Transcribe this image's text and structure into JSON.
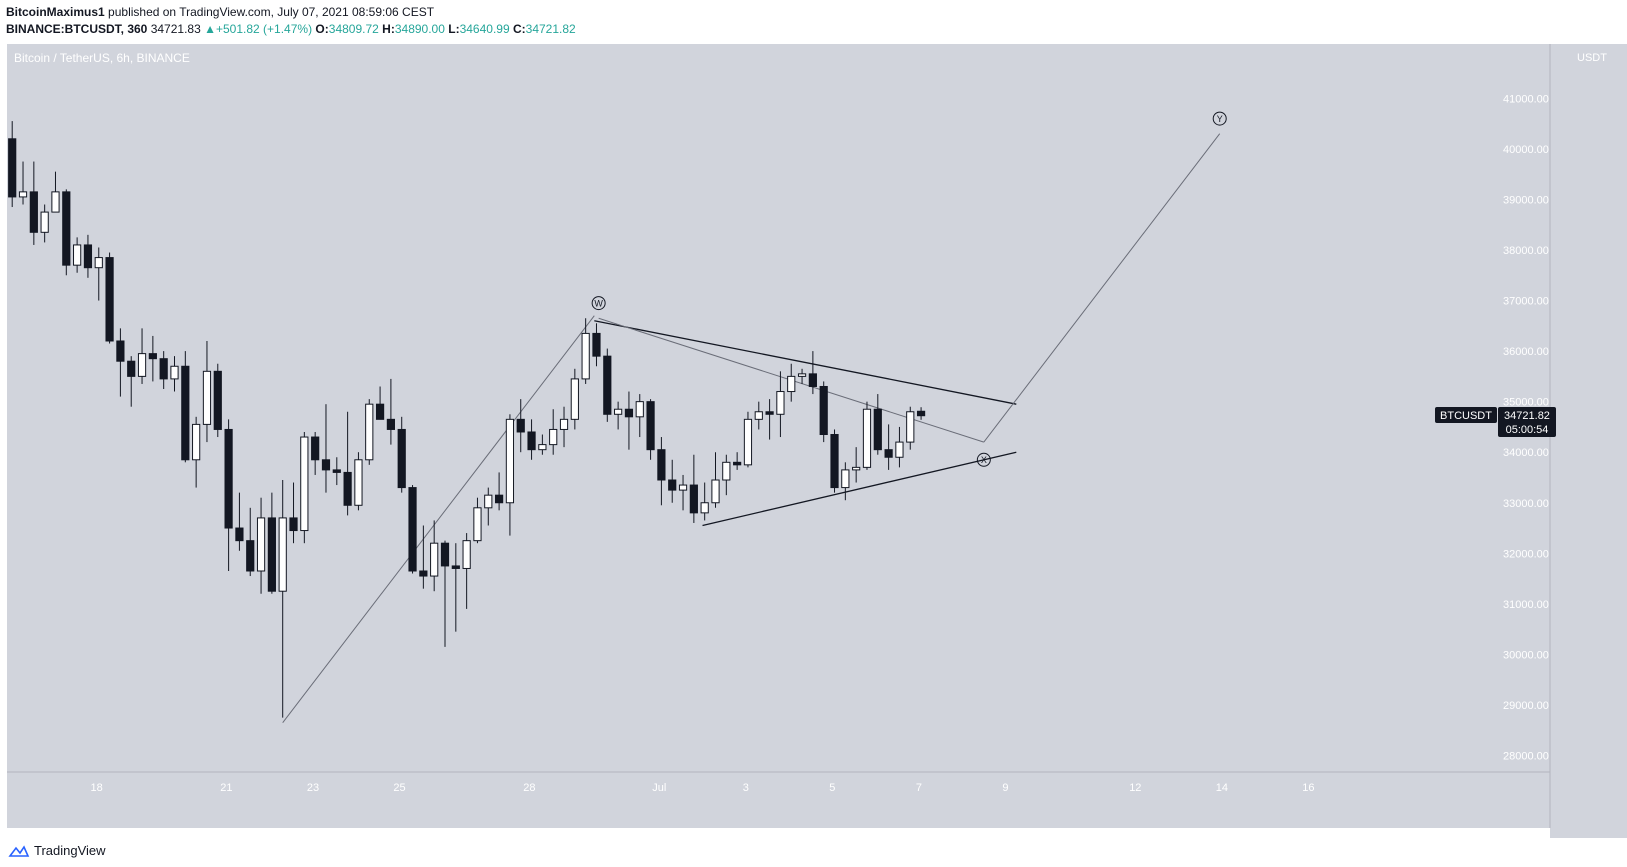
{
  "header": {
    "publisher": "BitcoinMaximus1",
    "published_text": "published on TradingView.com, July 07, 2021 08:59:06 CEST",
    "symbol": "BINANCE:BTCUSDT, 360",
    "last": "34721.83",
    "change": "+501.82 (+1.47%)",
    "o_label": "O:",
    "o_value": "34809.72",
    "h_label": "H:",
    "h_value": "34890.00",
    "l_label": "L:",
    "l_value": "34640.99",
    "c_label": "C:",
    "c_value": "34721.82"
  },
  "legend": "Bitcoin / TetherUS, 6h, BINANCE",
  "price_axis_unit": "USDT",
  "price_badge": {
    "symbol": "BTCUSDT",
    "price": "34721.82",
    "countdown": "05:00:54"
  },
  "waves": [
    "W",
    "X",
    "Y"
  ],
  "footer": {
    "brand": "TradingView"
  },
  "colors": {
    "plot_bg": "#d1d4dc",
    "bull": "#ffffff",
    "bear": "#131722",
    "line": "#131722",
    "badge": "#131722"
  },
  "chart_data": {
    "type": "candlestick",
    "title": "Bitcoin / TetherUS, 6h, BINANCE",
    "ylim": [
      27600,
      42000
    ],
    "y_ticks": [
      28000,
      29000,
      30000,
      31000,
      32000,
      33000,
      34000,
      35000,
      36000,
      37000,
      38000,
      39000,
      40000,
      41000
    ],
    "x_ticks": [
      {
        "label": "18",
        "i": 7.8
      },
      {
        "label": "21",
        "i": 19.8
      },
      {
        "label": "23",
        "i": 27.8
      },
      {
        "label": "25",
        "i": 35.8
      },
      {
        "label": "28",
        "i": 47.8
      },
      {
        "label": "Jul",
        "i": 59.8
      },
      {
        "label": "3",
        "i": 67.8
      },
      {
        "label": "5",
        "i": 75.8
      },
      {
        "label": "7",
        "i": 83.8
      },
      {
        "label": "9",
        "i": 91.8
      },
      {
        "label": "12",
        "i": 103.8
      },
      {
        "label": "14",
        "i": 111.8
      },
      {
        "label": "16",
        "i": 119.8
      }
    ],
    "candles": [
      {
        "o": 40200,
        "h": 40550,
        "l": 38850,
        "c": 39050
      },
      {
        "o": 39050,
        "h": 39750,
        "l": 38900,
        "c": 39150
      },
      {
        "o": 39150,
        "h": 39750,
        "l": 38100,
        "c": 38350
      },
      {
        "o": 38350,
        "h": 38900,
        "l": 38150,
        "c": 38750
      },
      {
        "o": 38750,
        "h": 39550,
        "l": 38750,
        "c": 39150
      },
      {
        "o": 39150,
        "h": 39200,
        "l": 37500,
        "c": 37700
      },
      {
        "o": 37700,
        "h": 38250,
        "l": 37550,
        "c": 38100
      },
      {
        "o": 38100,
        "h": 38300,
        "l": 37450,
        "c": 37650
      },
      {
        "o": 37650,
        "h": 38050,
        "l": 37000,
        "c": 37850
      },
      {
        "o": 37850,
        "h": 37950,
        "l": 36150,
        "c": 36200
      },
      {
        "o": 36200,
        "h": 36450,
        "l": 35100,
        "c": 35800
      },
      {
        "o": 35800,
        "h": 35900,
        "l": 34900,
        "c": 35500
      },
      {
        "o": 35500,
        "h": 36450,
        "l": 35350,
        "c": 35950
      },
      {
        "o": 35950,
        "h": 36300,
        "l": 35400,
        "c": 35850
      },
      {
        "o": 35850,
        "h": 36000,
        "l": 35250,
        "c": 35450
      },
      {
        "o": 35450,
        "h": 35900,
        "l": 35200,
        "c": 35700
      },
      {
        "o": 35700,
        "h": 36000,
        "l": 33800,
        "c": 33850
      },
      {
        "o": 33850,
        "h": 34700,
        "l": 33300,
        "c": 34550
      },
      {
        "o": 34550,
        "h": 36200,
        "l": 34200,
        "c": 35600
      },
      {
        "o": 35600,
        "h": 35750,
        "l": 34300,
        "c": 34450
      },
      {
        "o": 34450,
        "h": 34650,
        "l": 31650,
        "c": 32500
      },
      {
        "o": 32500,
        "h": 33200,
        "l": 32050,
        "c": 32250
      },
      {
        "o": 32250,
        "h": 32900,
        "l": 31550,
        "c": 31650
      },
      {
        "o": 31650,
        "h": 33100,
        "l": 31200,
        "c": 32700
      },
      {
        "o": 32700,
        "h": 33200,
        "l": 31200,
        "c": 31250
      },
      {
        "o": 31250,
        "h": 33450,
        "l": 28750,
        "c": 32700
      },
      {
        "o": 32700,
        "h": 33400,
        "l": 32200,
        "c": 32450
      },
      {
        "o": 32450,
        "h": 34400,
        "l": 32200,
        "c": 34300
      },
      {
        "o": 34300,
        "h": 34400,
        "l": 33550,
        "c": 33850
      },
      {
        "o": 33850,
        "h": 34950,
        "l": 33200,
        "c": 33650
      },
      {
        "o": 33650,
        "h": 33900,
        "l": 33350,
        "c": 33600
      },
      {
        "o": 33600,
        "h": 34800,
        "l": 32750,
        "c": 32950
      },
      {
        "o": 32950,
        "h": 34000,
        "l": 32850,
        "c": 33850
      },
      {
        "o": 33850,
        "h": 35050,
        "l": 33750,
        "c": 34950
      },
      {
        "o": 34950,
        "h": 35300,
        "l": 34650,
        "c": 34650
      },
      {
        "o": 34650,
        "h": 35450,
        "l": 34150,
        "c": 34450
      },
      {
        "o": 34450,
        "h": 34700,
        "l": 33200,
        "c": 33300
      },
      {
        "o": 33300,
        "h": 33350,
        "l": 31600,
        "c": 31650
      },
      {
        "o": 31650,
        "h": 32550,
        "l": 31300,
        "c": 31550
      },
      {
        "o": 31550,
        "h": 32650,
        "l": 31250,
        "c": 32200
      },
      {
        "o": 32200,
        "h": 32250,
        "l": 30150,
        "c": 31750
      },
      {
        "o": 31750,
        "h": 32200,
        "l": 30450,
        "c": 31700
      },
      {
        "o": 31700,
        "h": 32400,
        "l": 30900,
        "c": 32250
      },
      {
        "o": 32250,
        "h": 33100,
        "l": 32200,
        "c": 32900
      },
      {
        "o": 32900,
        "h": 33300,
        "l": 32550,
        "c": 33150
      },
      {
        "o": 33150,
        "h": 33600,
        "l": 32850,
        "c": 33000
      },
      {
        "o": 33000,
        "h": 34750,
        "l": 32350,
        "c": 34650
      },
      {
        "o": 34650,
        "h": 35050,
        "l": 34000,
        "c": 34400
      },
      {
        "o": 34400,
        "h": 34650,
        "l": 33850,
        "c": 34050
      },
      {
        "o": 34050,
        "h": 34350,
        "l": 33950,
        "c": 34150
      },
      {
        "o": 34150,
        "h": 34850,
        "l": 33950,
        "c": 34450
      },
      {
        "o": 34450,
        "h": 34900,
        "l": 34100,
        "c": 34650
      },
      {
        "o": 34650,
        "h": 35650,
        "l": 34450,
        "c": 35450
      },
      {
        "o": 35450,
        "h": 36650,
        "l": 35350,
        "c": 36350
      },
      {
        "o": 36350,
        "h": 36550,
        "l": 35700,
        "c": 35900
      },
      {
        "o": 35900,
        "h": 36050,
        "l": 34600,
        "c": 34750
      },
      {
        "o": 34750,
        "h": 35000,
        "l": 34450,
        "c": 34850
      },
      {
        "o": 34850,
        "h": 35200,
        "l": 34050,
        "c": 34700
      },
      {
        "o": 34700,
        "h": 35150,
        "l": 34300,
        "c": 35000
      },
      {
        "o": 35000,
        "h": 35050,
        "l": 33850,
        "c": 34050
      },
      {
        "o": 34050,
        "h": 34300,
        "l": 32950,
        "c": 33450
      },
      {
        "o": 33450,
        "h": 33850,
        "l": 33000,
        "c": 33250
      },
      {
        "o": 33250,
        "h": 33550,
        "l": 32850,
        "c": 33350
      },
      {
        "o": 33350,
        "h": 33950,
        "l": 32600,
        "c": 32800
      },
      {
        "o": 32800,
        "h": 33400,
        "l": 32650,
        "c": 33000
      },
      {
        "o": 33000,
        "h": 34000,
        "l": 32900,
        "c": 33450
      },
      {
        "o": 33450,
        "h": 33950,
        "l": 33150,
        "c": 33800
      },
      {
        "o": 33800,
        "h": 34000,
        "l": 33650,
        "c": 33750
      },
      {
        "o": 33750,
        "h": 34800,
        "l": 33700,
        "c": 34650
      },
      {
        "o": 34650,
        "h": 35000,
        "l": 34450,
        "c": 34800
      },
      {
        "o": 34800,
        "h": 35050,
        "l": 34250,
        "c": 34750
      },
      {
        "o": 34750,
        "h": 35600,
        "l": 34300,
        "c": 35200
      },
      {
        "o": 35200,
        "h": 35750,
        "l": 35000,
        "c": 35500
      },
      {
        "o": 35500,
        "h": 35650,
        "l": 35350,
        "c": 35550
      },
      {
        "o": 35550,
        "h": 36000,
        "l": 35150,
        "c": 35300
      },
      {
        "o": 35300,
        "h": 35400,
        "l": 34200,
        "c": 34350
      },
      {
        "o": 34350,
        "h": 34450,
        "l": 33200,
        "c": 33300
      },
      {
        "o": 33300,
        "h": 33800,
        "l": 33050,
        "c": 33650
      },
      {
        "o": 33650,
        "h": 34100,
        "l": 33400,
        "c": 33700
      },
      {
        "o": 33700,
        "h": 35000,
        "l": 33650,
        "c": 34850
      },
      {
        "o": 34850,
        "h": 35150,
        "l": 33950,
        "c": 34050
      },
      {
        "o": 34050,
        "h": 34550,
        "l": 33650,
        "c": 33900
      },
      {
        "o": 33900,
        "h": 34500,
        "l": 33700,
        "c": 34200
      },
      {
        "o": 34200,
        "h": 34900,
        "l": 34050,
        "c": 34800
      },
      {
        "o": 34809.72,
        "h": 34890,
        "l": 34640.99,
        "c": 34721.82
      }
    ],
    "trendlines": [
      {
        "name": "upper",
        "from": [
          53.8,
          36600
        ],
        "to": [
          92.8,
          34950
        ]
      },
      {
        "name": "lower",
        "from": [
          63.8,
          32550
        ],
        "to": [
          92.8,
          34000
        ]
      },
      {
        "name": "path-1",
        "from": [
          25.0,
          28650
        ],
        "to": [
          53.8,
          36700
        ]
      },
      {
        "name": "path-2",
        "from": [
          54.2,
          36650
        ],
        "to": [
          89.8,
          34200
        ]
      },
      {
        "name": "path-3",
        "from": [
          89.8,
          34200
        ],
        "to": [
          111.6,
          40300
        ]
      }
    ],
    "wave_labels": [
      {
        "label": "W",
        "i": 54.2,
        "y": 36950
      },
      {
        "label": "X",
        "i": 89.8,
        "y": 33850
      },
      {
        "label": "Y",
        "i": 111.6,
        "y": 40600
      }
    ]
  }
}
